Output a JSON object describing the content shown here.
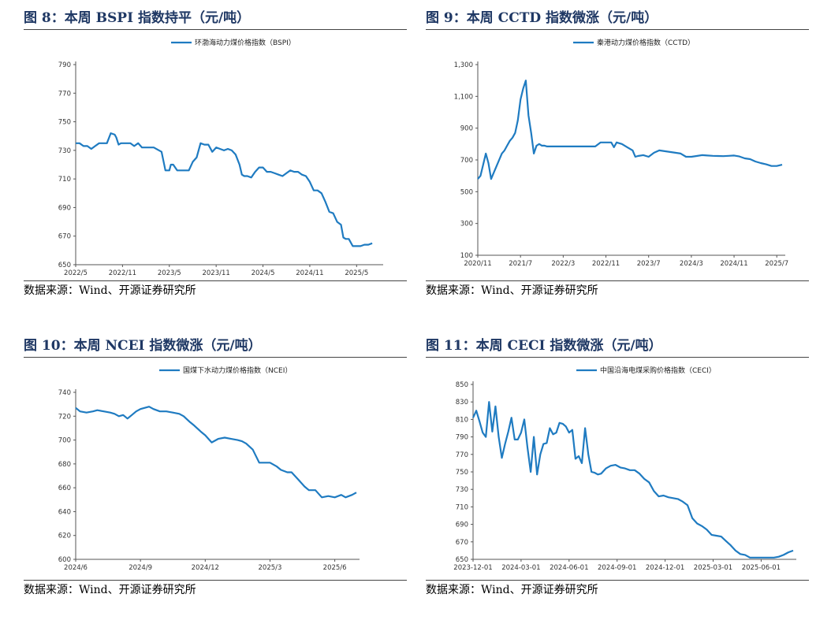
{
  "colors": {
    "line": "#1f7bc1",
    "title": "#1f3864",
    "axis": "#555555"
  },
  "charts": [
    {
      "title": "图 8：本周 BSPI 指数持平（元/吨）",
      "source": "数据来源：Wind、开源证券研究所",
      "chart_data": {
        "type": "line",
        "title": "",
        "xlabel": "",
        "ylabel": "",
        "ylim": [
          650,
          790
        ],
        "yticks": [
          650,
          670,
          690,
          710,
          730,
          750,
          770,
          790
        ],
        "ytick_labels": [
          "650",
          "670",
          "690",
          "710",
          "730",
          "750",
          "770",
          "790"
        ],
        "xlim": [
          0,
          39
        ],
        "xticks": [
          0,
          6,
          12,
          18,
          24,
          30,
          36
        ],
        "xtick_labels": [
          "2022/5",
          "2022/11",
          "2023/5",
          "2023/11",
          "2024/5",
          "2024/11",
          "2025/5"
        ],
        "legend": "top-center",
        "series": [
          {
            "name": "环渤海动力煤价格指数（BSPI）",
            "x": [
              0,
              0.5,
              1,
              1.5,
              2,
              2.5,
              3,
              3.5,
              4,
              4.5,
              5,
              5.2,
              5.5,
              5.8,
              6.2,
              6.5,
              7,
              7.5,
              8,
              8.5,
              9,
              9.2,
              9.5,
              10,
              11,
              11.5,
              12,
              12.2,
              12.5,
              13,
              13.5,
              14,
              14.5,
              15,
              15.5,
              16,
              16.5,
              17,
              17.5,
              18,
              18.5,
              19,
              19.5,
              20,
              20.5,
              21,
              21.3,
              21.6,
              22,
              22.5,
              23,
              23.5,
              24,
              24.5,
              25,
              25.5,
              26,
              26.5,
              27,
              27.5,
              28,
              28.5,
              29,
              29.5,
              30,
              30.5,
              31,
              31.5,
              32,
              32.5,
              33,
              33.5,
              34,
              34.3,
              34.6,
              35,
              35.5,
              36,
              36.5,
              37,
              37.5,
              38
            ],
            "values": [
              735,
              735,
              733,
              733,
              731,
              733,
              735,
              735,
              735,
              742,
              741,
              739,
              734,
              735,
              735,
              735,
              735,
              733,
              735,
              732,
              732,
              732,
              732,
              732,
              729,
              716,
              716,
              720,
              720,
              716,
              716,
              716,
              716,
              722,
              725,
              735,
              734,
              734,
              729,
              732,
              731,
              730,
              731,
              730,
              727,
              720,
              713,
              712,
              712,
              711,
              715,
              718,
              718,
              715,
              715,
              714,
              713,
              712,
              714,
              716,
              715,
              715,
              713,
              712,
              708,
              702,
              702,
              700,
              694,
              687,
              686,
              680,
              678,
              669,
              668,
              668,
              663,
              663,
              663,
              664,
              664,
              665
            ]
          }
        ]
      }
    },
    {
      "title": "图 9：本周 CCTD 指数微涨（元/吨）",
      "source": "数据来源：Wind、开源证券研究所",
      "chart_data": {
        "type": "line",
        "title": "",
        "xlabel": "",
        "ylabel": "",
        "ylim": [
          100,
          1300
        ],
        "yticks": [
          100,
          300,
          500,
          700,
          900,
          1100,
          1300
        ],
        "ytick_labels": [
          "100",
          "300",
          "500",
          "700",
          "900",
          "1,100",
          "1,300"
        ],
        "xlim": [
          0,
          57
        ],
        "xticks": [
          0,
          8,
          16,
          24,
          32,
          40,
          48,
          56
        ],
        "xtick_labels": [
          "2020/11",
          "2021/7",
          "2022/3",
          "2022/11",
          "2023/7",
          "2024/3",
          "2024/11",
          "2025/7"
        ],
        "legend": "top-center",
        "series": [
          {
            "name": "秦港动力煤价格指数（CCTD）",
            "x": [
              0,
              0.5,
              1,
              1.5,
              2,
              2.5,
              3,
              3.5,
              4,
              4.5,
              5,
              5.5,
              6,
              6.5,
              7,
              7.5,
              8,
              8.5,
              9,
              9.5,
              10,
              10.5,
              11,
              11.5,
              12,
              12.5,
              13,
              14,
              16,
              18,
              20,
              21,
              22,
              23,
              24,
              25,
              25.5,
              26,
              27,
              28,
              29,
              29.5,
              30,
              31,
              32,
              33,
              34,
              35,
              36,
              37,
              38,
              39,
              40,
              41,
              42,
              43,
              44,
              45,
              46,
              47,
              48,
              49,
              50,
              51,
              52,
              53,
              54,
              55,
              56,
              57
            ],
            "values": [
              580,
              600,
              670,
              740,
              680,
              580,
              620,
              660,
              700,
              740,
              760,
              790,
              820,
              840,
              870,
              950,
              1080,
              1150,
              1200,
              980,
              870,
              740,
              790,
              800,
              790,
              790,
              785,
              785,
              785,
              785,
              785,
              785,
              785,
              810,
              810,
              810,
              780,
              810,
              800,
              780,
              760,
              720,
              725,
              730,
              720,
              745,
              760,
              755,
              750,
              745,
              740,
              720,
              720,
              725,
              730,
              728,
              726,
              725,
              724,
              726,
              728,
              722,
              710,
              705,
              690,
              680,
              672,
              662,
              662,
              670
            ]
          }
        ]
      }
    },
    {
      "title": "图 10：本周 NCEI 指数微涨（元/吨）",
      "source": "数据来源：Wind、开源证券研究所",
      "chart_data": {
        "type": "line",
        "title": "",
        "xlabel": "",
        "ylabel": "",
        "ylim": [
          600,
          740
        ],
        "yticks": [
          600,
          620,
          640,
          660,
          680,
          700,
          720,
          740
        ],
        "ytick_labels": [
          "600",
          "620",
          "640",
          "660",
          "680",
          "700",
          "720",
          "740"
        ],
        "xlim": [
          0,
          13
        ],
        "xticks": [
          0,
          3,
          6,
          9,
          12
        ],
        "xtick_labels": [
          "2024/6",
          "2024/9",
          "2024/12",
          "2025/3",
          "2025/6"
        ],
        "legend": "top-center",
        "series": [
          {
            "name": "国煤下水动力煤价格指数（NCEI）",
            "x": [
              0,
              0.2,
              0.5,
              0.8,
              1.0,
              1.3,
              1.6,
              1.8,
              2.0,
              2.2,
              2.4,
              2.6,
              2.8,
              3.0,
              3.2,
              3.4,
              3.6,
              3.9,
              4.2,
              4.5,
              4.8,
              5.0,
              5.3,
              5.5,
              5.8,
              6.0,
              6.3,
              6.6,
              6.9,
              7.2,
              7.5,
              7.7,
              7.9,
              8.2,
              8.5,
              8.7,
              9.0,
              9.3,
              9.5,
              9.8,
              10.0,
              10.3,
              10.6,
              10.8,
              11.1,
              11.4,
              11.7,
              12.0,
              12.3,
              12.5,
              12.8,
              13.0
            ],
            "values": [
              727,
              724,
              723,
              724,
              725,
              724,
              723,
              722,
              720,
              721,
              718,
              721,
              724,
              726,
              727,
              728,
              726,
              724,
              724,
              723,
              722,
              720,
              715,
              712,
              707,
              704,
              698,
              701,
              702,
              701,
              700,
              699,
              697,
              692,
              681,
              681,
              681,
              678,
              675,
              673,
              673,
              667,
              661,
              658,
              658,
              652,
              653,
              652,
              654,
              652,
              654,
              656
            ]
          }
        ]
      }
    },
    {
      "title": "图 11：本周 CECI 指数微涨（元/吨）",
      "source": "数据来源：Wind、开源证券研究所",
      "chart_data": {
        "type": "line",
        "title": "",
        "xlabel": "",
        "ylabel": "",
        "ylim": [
          650,
          850
        ],
        "yticks": [
          650,
          670,
          690,
          710,
          730,
          750,
          770,
          790,
          810,
          830,
          850
        ],
        "ytick_labels": [
          "650",
          "670",
          "690",
          "710",
          "730",
          "750",
          "770",
          "790",
          "810",
          "830",
          "850"
        ],
        "xlim": [
          0,
          20
        ],
        "xticks": [
          0,
          3,
          6,
          9,
          12,
          15,
          18
        ],
        "xtick_labels": [
          "2023-12-01",
          "2024-03-01",
          "2024-06-01",
          "2024-09-01",
          "2024-12-01",
          "2025-03-01",
          "2025-06-01"
        ],
        "legend": "top-center",
        "series": [
          {
            "name": "中国沿海电煤采购价格指数（CECI）",
            "x": [
              0,
              0.2,
              0.4,
              0.6,
              0.8,
              1.0,
              1.2,
              1.4,
              1.6,
              1.8,
              2.0,
              2.2,
              2.4,
              2.6,
              2.8,
              3.0,
              3.2,
              3.4,
              3.6,
              3.8,
              4.0,
              4.2,
              4.4,
              4.6,
              4.8,
              5.0,
              5.2,
              5.4,
              5.6,
              5.8,
              6.0,
              6.2,
              6.4,
              6.6,
              6.8,
              7.0,
              7.2,
              7.4,
              7.6,
              7.8,
              8.0,
              8.3,
              8.6,
              8.9,
              9.2,
              9.5,
              9.8,
              10.1,
              10.4,
              10.7,
              11.0,
              11.3,
              11.6,
              11.9,
              12.2,
              12.5,
              12.8,
              13.1,
              13.4,
              13.7,
              14.0,
              14.3,
              14.6,
              14.9,
              15.2,
              15.5,
              15.8,
              16.1,
              16.4,
              16.7,
              17.0,
              17.3,
              17.6,
              17.9,
              18.2,
              18.5,
              18.8,
              19.1,
              19.4,
              19.7,
              20.0
            ],
            "values": [
              812,
              820,
              808,
              795,
              790,
              830,
              796,
              825,
              790,
              766,
              782,
              796,
              812,
              787,
              787,
              795,
              810,
              778,
              750,
              790,
              747,
              770,
              782,
              783,
              800,
              793,
              795,
              806,
              805,
              802,
              795,
              798,
              765,
              768,
              760,
              800,
              770,
              750,
              749,
              747,
              748,
              754,
              757,
              758,
              755,
              754,
              752,
              752,
              748,
              742,
              738,
              728,
              722,
              723,
              721,
              720,
              719,
              716,
              712,
              697,
              691,
              688,
              684,
              678,
              677,
              676,
              671,
              666,
              660,
              656,
              655,
              652,
              652,
              652,
              652,
              652,
              652,
              653,
              655,
              658,
              660
            ]
          }
        ]
      }
    }
  ]
}
